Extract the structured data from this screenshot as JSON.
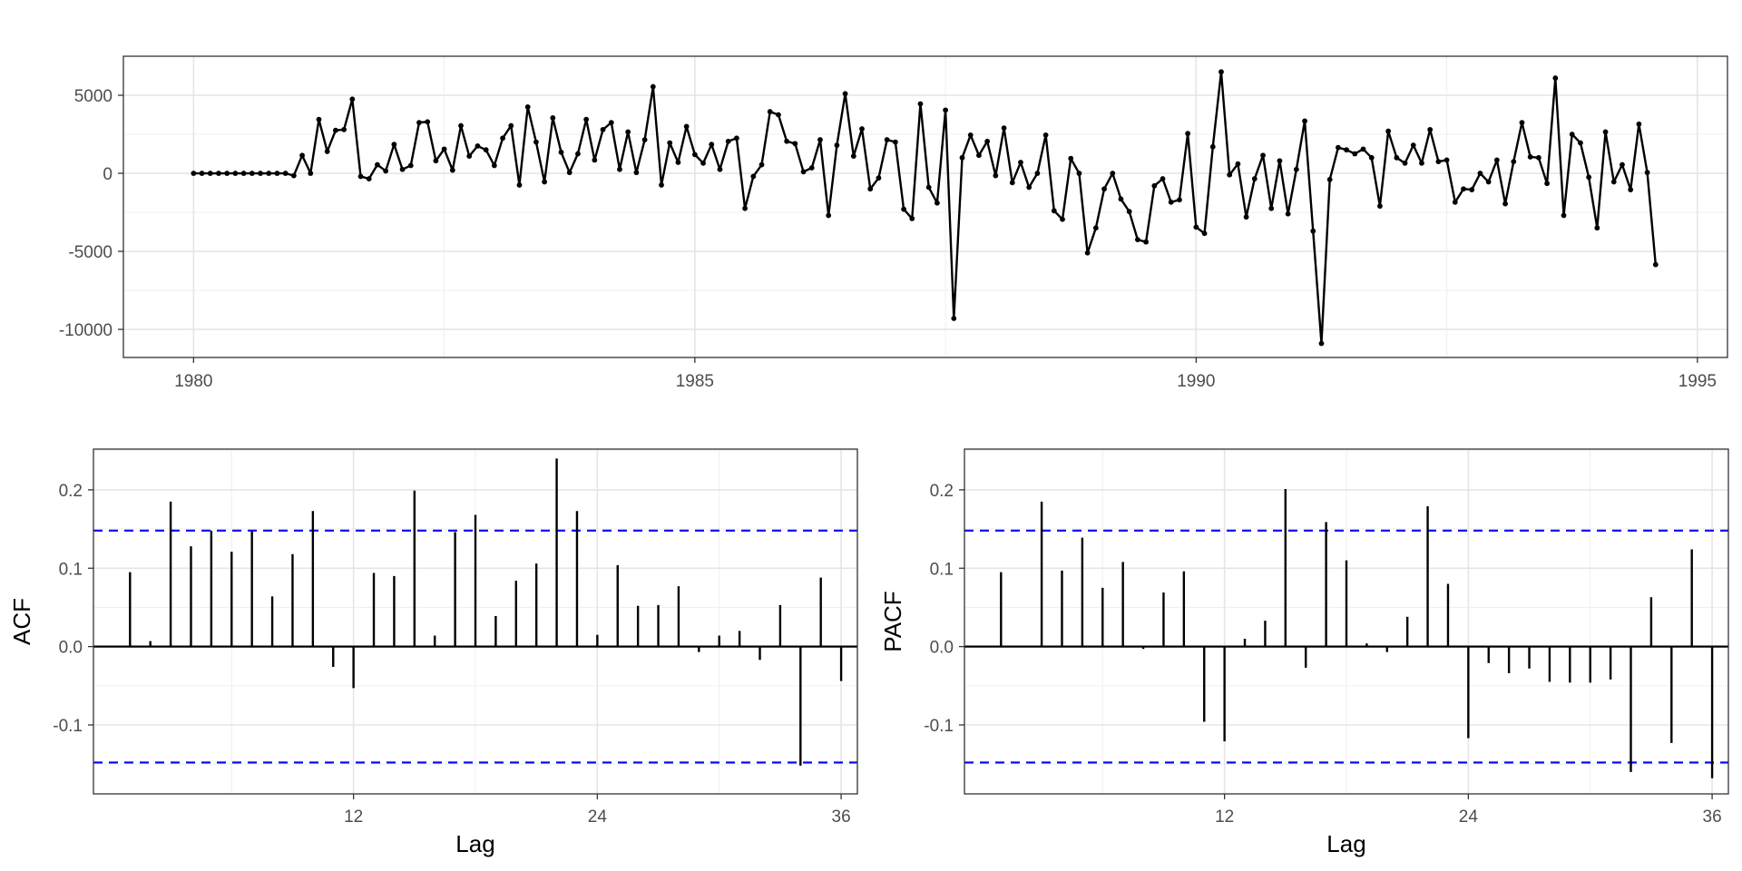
{
  "chart_data": [
    {
      "type": "line",
      "title": "",
      "xlabel": "",
      "ylabel": "",
      "x_start": 1980.0,
      "x_step": 0.0833333333,
      "xlim": [
        1979.3,
        1995.3
      ],
      "ylim": [
        -11800,
        7500
      ],
      "x_ticks": [
        1980,
        1985,
        1990,
        1995
      ],
      "y_ticks": [
        -10000,
        -5000,
        0,
        5000
      ],
      "x_tick_labels": [
        "1980",
        "1985",
        "1990",
        "1995"
      ],
      "y_tick_labels": [
        "-10000",
        "-5000",
        "0",
        "5000"
      ],
      "line_color": "#000000",
      "grid": true,
      "values": [
        0,
        0,
        0,
        0,
        0,
        0,
        0,
        0,
        0,
        0,
        0,
        0,
        -150,
        1150,
        0,
        3450,
        1400,
        2750,
        2800,
        4750,
        -200,
        -350,
        550,
        150,
        1850,
        250,
        500,
        3250,
        3300,
        800,
        1550,
        200,
        3050,
        1100,
        1750,
        1500,
        500,
        2250,
        3050,
        -750,
        4250,
        2000,
        -550,
        3550,
        1350,
        50,
        1250,
        3450,
        850,
        2800,
        3250,
        250,
        2650,
        50,
        2150,
        5550,
        -750,
        1950,
        700,
        3000,
        1200,
        650,
        1850,
        250,
        2050,
        2250,
        -2250,
        -200,
        550,
        3950,
        3750,
        2050,
        1900,
        100,
        350,
        2150,
        -2700,
        1800,
        5100,
        1100,
        2850,
        -1000,
        -300,
        2150,
        2000,
        -2300,
        -2900,
        4450,
        -900,
        -1900,
        4050,
        -9300,
        1000,
        2450,
        1150,
        2050,
        -150,
        2900,
        -600,
        700,
        -900,
        0,
        2450,
        -2400,
        -2950,
        950,
        0,
        -5100,
        -3500,
        -1000,
        0,
        -1650,
        -2450,
        -4250,
        -4400,
        -800,
        -350,
        -1850,
        -1700,
        2550,
        -3450,
        -3850,
        1700,
        6500,
        -100,
        600,
        -2800,
        -350,
        1150,
        -2250,
        800,
        -2600,
        250,
        3350,
        -3700,
        -10900,
        -400,
        1650,
        1500,
        1250,
        1550,
        1000,
        -2100,
        2700,
        1000,
        650,
        1800,
        650,
        2800,
        750,
        850,
        -1850,
        -1000,
        -1050,
        0,
        -550,
        850,
        -1950,
        750,
        3250,
        1050,
        1000,
        -650,
        6100,
        -2700,
        2500,
        1950,
        -250,
        -3500,
        2650,
        -550,
        550,
        -1050,
        3150,
        50,
        -5850
      ]
    },
    {
      "type": "bar",
      "title": "",
      "xlabel": "Lag",
      "ylabel": "ACF",
      "lags": [
        1,
        2,
        3,
        4,
        5,
        6,
        7,
        8,
        9,
        10,
        11,
        12,
        13,
        14,
        15,
        16,
        17,
        18,
        19,
        20,
        21,
        22,
        23,
        24,
        25,
        26,
        27,
        28,
        29,
        30,
        31,
        32,
        33,
        34,
        35,
        36
      ],
      "values": [
        0.095,
        0.007,
        0.185,
        0.128,
        0.148,
        0.121,
        0.147,
        0.064,
        0.118,
        0.173,
        -0.026,
        -0.053,
        0.094,
        0.09,
        0.199,
        0.014,
        0.146,
        0.168,
        0.039,
        0.084,
        0.106,
        0.24,
        0.173,
        0.015,
        0.104,
        0.052,
        0.053,
        0.077,
        -0.007,
        0.014,
        0.02,
        -0.017,
        0.053,
        -0.152,
        0.088,
        -0.044
      ],
      "xlim": [
        -0.8,
        36.8
      ],
      "ylim": [
        -0.188,
        0.252
      ],
      "x_ticks": [
        12,
        24,
        36
      ],
      "y_ticks": [
        -0.1,
        0.0,
        0.1,
        0.2
      ],
      "x_tick_labels": [
        "12",
        "24",
        "36"
      ],
      "y_tick_labels": [
        "-0.1",
        "0.0",
        "0.1",
        "0.2"
      ],
      "ci": 0.148,
      "ci_color": "#0000ff",
      "bar_color": "#000000",
      "grid": true
    },
    {
      "type": "bar",
      "title": "",
      "xlabel": "Lag",
      "ylabel": "PACF",
      "lags": [
        1,
        2,
        3,
        4,
        5,
        6,
        7,
        8,
        9,
        10,
        11,
        12,
        13,
        14,
        15,
        16,
        17,
        18,
        19,
        20,
        21,
        22,
        23,
        24,
        25,
        26,
        27,
        28,
        29,
        30,
        31,
        32,
        33,
        34,
        35,
        36
      ],
      "values": [
        0.095,
        0.0,
        0.185,
        0.097,
        0.139,
        0.075,
        0.108,
        -0.003,
        0.069,
        0.096,
        -0.096,
        -0.121,
        0.01,
        0.033,
        0.201,
        -0.027,
        0.159,
        0.11,
        0.004,
        -0.007,
        0.038,
        0.179,
        0.08,
        -0.117,
        -0.021,
        -0.034,
        -0.028,
        -0.045,
        -0.046,
        -0.046,
        -0.042,
        -0.16,
        0.063,
        -0.123,
        0.124,
        -0.168
      ],
      "xlim": [
        -0.8,
        36.8
      ],
      "ylim": [
        -0.188,
        0.252
      ],
      "x_ticks": [
        12,
        24,
        36
      ],
      "y_ticks": [
        -0.1,
        0.0,
        0.1,
        0.2
      ],
      "x_tick_labels": [
        "12",
        "24",
        "36"
      ],
      "y_tick_labels": [
        "-0.1",
        "0.0",
        "0.1",
        "0.2"
      ],
      "ci": 0.148,
      "ci_color": "#0000ff",
      "bar_color": "#000000",
      "grid": true
    }
  ]
}
